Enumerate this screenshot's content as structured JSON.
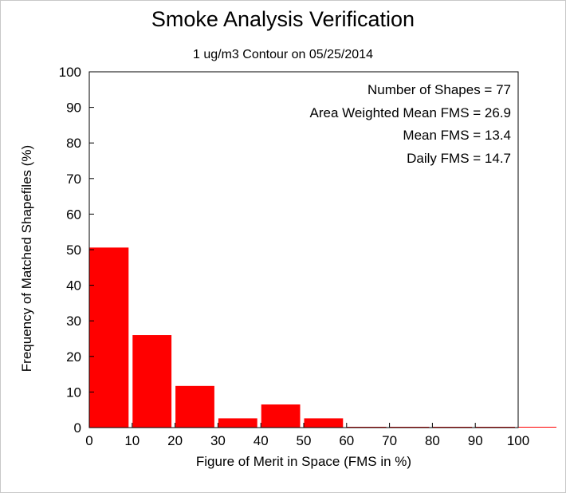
{
  "chart_data": {
    "type": "bar",
    "title": "Smoke Analysis Verification",
    "subtitle": "1 ug/m3 Contour on 05/25/2014",
    "xlabel": "Figure of Merit in Space (FMS in %)",
    "ylabel": "Frequency of Matched Shapefiles (%)",
    "xlim": [
      0,
      100
    ],
    "ylim": [
      0,
      100
    ],
    "x_ticks": [
      "0",
      "10",
      "20",
      "30",
      "40",
      "50",
      "60",
      "70",
      "80",
      "90",
      "100"
    ],
    "y_ticks": [
      "0",
      "10",
      "20",
      "30",
      "40",
      "50",
      "60",
      "70",
      "80",
      "90",
      "100"
    ],
    "bin_width": 10,
    "bin_starts": [
      0,
      10,
      20,
      30,
      40,
      50,
      60,
      70,
      80,
      90
    ],
    "values": [
      50.6,
      26.0,
      11.7,
      2.6,
      6.5,
      2.6,
      0,
      0,
      0,
      0
    ],
    "bar_color": "#ff0000",
    "annotations": [
      "Number of Shapes = 77",
      "Area Weighted Mean FMS = 26.9",
      "Mean FMS = 13.4",
      "Daily FMS = 14.7"
    ],
    "grid": false
  }
}
